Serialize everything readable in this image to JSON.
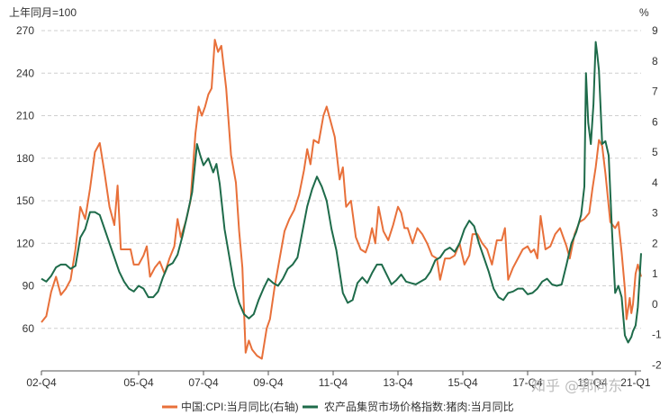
{
  "chart_data": {
    "type": "line",
    "y_left_unit": "上年同月=100",
    "y_right_unit": "%",
    "y_left_ticks": [
      60,
      90,
      120,
      150,
      180,
      210,
      240,
      270
    ],
    "y_right_ticks": [
      -2,
      -1,
      0,
      1,
      2,
      3,
      4,
      5,
      6,
      7,
      8,
      9
    ],
    "ylim_left": [
      30,
      270
    ],
    "ylim_right": [
      -2.2,
      9
    ],
    "xlim": [
      2002.75,
      2021.25
    ],
    "x_ticks": [
      {
        "label": "02-Q4",
        "x": 2002.75
      },
      {
        "label": "05-Q4",
        "x": 2005.75
      },
      {
        "label": "07-Q4",
        "x": 2007.75
      },
      {
        "label": "09-Q4",
        "x": 2009.75
      },
      {
        "label": "11-Q4",
        "x": 2011.75
      },
      {
        "label": "13-Q4",
        "x": 2013.75
      },
      {
        "label": "15-Q4",
        "x": 2015.75
      },
      {
        "label": "17-Q4",
        "x": 2017.75
      },
      {
        "label": "19-Q4",
        "x": 2019.75
      },
      {
        "label": "21-Q1",
        "x": 2021.08
      }
    ],
    "grid": "horizontal-dashed",
    "legend_position": "bottom",
    "series": [
      {
        "name": "中国:CPI:当月同比(右轴)",
        "axis": "right",
        "color": "#e8703a",
        "points": [
          [
            2002.75,
            -0.6
          ],
          [
            2002.9,
            -0.4
          ],
          [
            2003.05,
            0.4
          ],
          [
            2003.2,
            0.9
          ],
          [
            2003.35,
            0.3
          ],
          [
            2003.5,
            0.5
          ],
          [
            2003.65,
            0.8
          ],
          [
            2003.8,
            1.8
          ],
          [
            2003.95,
            3.2
          ],
          [
            2004.1,
            2.8
          ],
          [
            2004.25,
            3.8
          ],
          [
            2004.4,
            5.0
          ],
          [
            2004.55,
            5.3
          ],
          [
            2004.7,
            4.3
          ],
          [
            2004.85,
            3.2
          ],
          [
            2005.0,
            2.6
          ],
          [
            2005.1,
            3.9
          ],
          [
            2005.2,
            1.8
          ],
          [
            2005.35,
            1.8
          ],
          [
            2005.5,
            1.8
          ],
          [
            2005.6,
            1.3
          ],
          [
            2005.75,
            1.3
          ],
          [
            2005.9,
            1.6
          ],
          [
            2006.0,
            1.9
          ],
          [
            2006.1,
            0.9
          ],
          [
            2006.25,
            1.2
          ],
          [
            2006.4,
            1.4
          ],
          [
            2006.55,
            1.0
          ],
          [
            2006.7,
            1.5
          ],
          [
            2006.85,
            1.9
          ],
          [
            2006.95,
            2.8
          ],
          [
            2007.05,
            2.2
          ],
          [
            2007.2,
            2.7
          ],
          [
            2007.35,
            3.4
          ],
          [
            2007.5,
            5.6
          ],
          [
            2007.6,
            6.5
          ],
          [
            2007.7,
            6.2
          ],
          [
            2007.8,
            6.5
          ],
          [
            2007.9,
            6.9
          ],
          [
            2008.0,
            7.1
          ],
          [
            2008.1,
            8.7
          ],
          [
            2008.2,
            8.3
          ],
          [
            2008.3,
            8.5
          ],
          [
            2008.45,
            7.1
          ],
          [
            2008.6,
            4.9
          ],
          [
            2008.75,
            4.0
          ],
          [
            2008.85,
            2.4
          ],
          [
            2008.95,
            1.2
          ],
          [
            2009.05,
            -1.6
          ],
          [
            2009.15,
            -1.2
          ],
          [
            2009.25,
            -1.5
          ],
          [
            2009.4,
            -1.7
          ],
          [
            2009.55,
            -1.8
          ],
          [
            2009.7,
            -0.8
          ],
          [
            2009.8,
            -0.5
          ],
          [
            2009.95,
            0.6
          ],
          [
            2010.1,
            1.5
          ],
          [
            2010.25,
            2.4
          ],
          [
            2010.4,
            2.8
          ],
          [
            2010.55,
            3.1
          ],
          [
            2010.7,
            3.6
          ],
          [
            2010.85,
            4.4
          ],
          [
            2010.95,
            5.1
          ],
          [
            2011.05,
            4.6
          ],
          [
            2011.15,
            5.4
          ],
          [
            2011.3,
            5.3
          ],
          [
            2011.45,
            6.2
          ],
          [
            2011.55,
            6.5
          ],
          [
            2011.65,
            6.1
          ],
          [
            2011.8,
            5.5
          ],
          [
            2011.95,
            4.1
          ],
          [
            2012.05,
            4.5
          ],
          [
            2012.15,
            3.2
          ],
          [
            2012.3,
            3.4
          ],
          [
            2012.45,
            2.2
          ],
          [
            2012.6,
            1.8
          ],
          [
            2012.75,
            1.7
          ],
          [
            2012.85,
            2.0
          ],
          [
            2012.95,
            2.5
          ],
          [
            2013.05,
            2.0
          ],
          [
            2013.15,
            3.2
          ],
          [
            2013.3,
            2.4
          ],
          [
            2013.45,
            2.1
          ],
          [
            2013.6,
            2.6
          ],
          [
            2013.75,
            3.2
          ],
          [
            2013.85,
            3.0
          ],
          [
            2013.95,
            2.5
          ],
          [
            2014.05,
            2.5
          ],
          [
            2014.2,
            2.0
          ],
          [
            2014.35,
            2.5
          ],
          [
            2014.5,
            2.3
          ],
          [
            2014.65,
            2.0
          ],
          [
            2014.8,
            1.6
          ],
          [
            2014.95,
            1.5
          ],
          [
            2015.05,
            0.8
          ],
          [
            2015.2,
            1.5
          ],
          [
            2015.35,
            1.5
          ],
          [
            2015.5,
            1.6
          ],
          [
            2015.65,
            2.0
          ],
          [
            2015.8,
            1.3
          ],
          [
            2015.95,
            1.6
          ],
          [
            2016.05,
            2.3
          ],
          [
            2016.2,
            2.3
          ],
          [
            2016.35,
            2.0
          ],
          [
            2016.5,
            1.8
          ],
          [
            2016.65,
            1.3
          ],
          [
            2016.8,
            2.1
          ],
          [
            2016.95,
            2.1
          ],
          [
            2017.05,
            2.5
          ],
          [
            2017.15,
            0.8
          ],
          [
            2017.3,
            1.2
          ],
          [
            2017.45,
            1.5
          ],
          [
            2017.6,
            1.8
          ],
          [
            2017.75,
            1.9
          ],
          [
            2017.85,
            1.7
          ],
          [
            2017.95,
            1.8
          ],
          [
            2018.05,
            1.5
          ],
          [
            2018.15,
            2.9
          ],
          [
            2018.3,
            1.8
          ],
          [
            2018.45,
            1.9
          ],
          [
            2018.6,
            2.3
          ],
          [
            2018.75,
            2.5
          ],
          [
            2018.85,
            2.2
          ],
          [
            2018.95,
            1.9
          ],
          [
            2019.05,
            1.5
          ],
          [
            2019.2,
            2.3
          ],
          [
            2019.35,
            2.7
          ],
          [
            2019.5,
            2.8
          ],
          [
            2019.65,
            3.0
          ],
          [
            2019.75,
            3.8
          ],
          [
            2019.85,
            4.5
          ],
          [
            2019.95,
            5.4
          ],
          [
            2020.05,
            5.2
          ],
          [
            2020.15,
            4.3
          ],
          [
            2020.3,
            2.7
          ],
          [
            2020.45,
            2.5
          ],
          [
            2020.55,
            2.7
          ],
          [
            2020.65,
            1.7
          ],
          [
            2020.75,
            0.5
          ],
          [
            2020.8,
            -0.5
          ],
          [
            2020.9,
            0.2
          ],
          [
            2020.95,
            -0.3
          ],
          [
            2021.0,
            0.0
          ],
          [
            2021.08,
            1.0
          ],
          [
            2021.15,
            1.3
          ],
          [
            2021.25,
            0.9
          ]
        ]
      },
      {
        "name": "农产品集贸市场价格指数:猪肉:当月同比",
        "axis": "left",
        "color": "#1e6b4a",
        "points": [
          [
            2002.75,
            95
          ],
          [
            2002.9,
            93
          ],
          [
            2003.05,
            97
          ],
          [
            2003.2,
            103
          ],
          [
            2003.35,
            105
          ],
          [
            2003.5,
            105
          ],
          [
            2003.65,
            102
          ],
          [
            2003.8,
            104
          ],
          [
            2003.95,
            124
          ],
          [
            2004.1,
            130
          ],
          [
            2004.25,
            142
          ],
          [
            2004.4,
            142
          ],
          [
            2004.55,
            140
          ],
          [
            2004.7,
            130
          ],
          [
            2004.85,
            120
          ],
          [
            2005.0,
            110
          ],
          [
            2005.15,
            100
          ],
          [
            2005.3,
            93
          ],
          [
            2005.45,
            88
          ],
          [
            2005.6,
            86
          ],
          [
            2005.75,
            90
          ],
          [
            2005.9,
            88
          ],
          [
            2006.05,
            82
          ],
          [
            2006.2,
            82
          ],
          [
            2006.35,
            86
          ],
          [
            2006.5,
            96
          ],
          [
            2006.65,
            104
          ],
          [
            2006.8,
            106
          ],
          [
            2006.95,
            112
          ],
          [
            2007.1,
            125
          ],
          [
            2007.25,
            140
          ],
          [
            2007.4,
            156
          ],
          [
            2007.55,
            190
          ],
          [
            2007.65,
            182
          ],
          [
            2007.75,
            175
          ],
          [
            2007.9,
            180
          ],
          [
            2008.05,
            170
          ],
          [
            2008.15,
            176
          ],
          [
            2008.25,
            162
          ],
          [
            2008.4,
            130
          ],
          [
            2008.55,
            110
          ],
          [
            2008.7,
            90
          ],
          [
            2008.85,
            78
          ],
          [
            2009.0,
            70
          ],
          [
            2009.15,
            67
          ],
          [
            2009.3,
            70
          ],
          [
            2009.45,
            80
          ],
          [
            2009.6,
            88
          ],
          [
            2009.75,
            95
          ],
          [
            2009.9,
            92
          ],
          [
            2010.05,
            90
          ],
          [
            2010.2,
            95
          ],
          [
            2010.35,
            102
          ],
          [
            2010.5,
            105
          ],
          [
            2010.65,
            110
          ],
          [
            2010.8,
            128
          ],
          [
            2010.95,
            146
          ],
          [
            2011.1,
            158
          ],
          [
            2011.25,
            167
          ],
          [
            2011.4,
            160
          ],
          [
            2011.55,
            150
          ],
          [
            2011.7,
            130
          ],
          [
            2011.85,
            115
          ],
          [
            2011.95,
            100
          ],
          [
            2012.05,
            85
          ],
          [
            2012.2,
            78
          ],
          [
            2012.35,
            80
          ],
          [
            2012.5,
            92
          ],
          [
            2012.65,
            96
          ],
          [
            2012.8,
            92
          ],
          [
            2012.95,
            99
          ],
          [
            2013.1,
            105
          ],
          [
            2013.25,
            105
          ],
          [
            2013.4,
            98
          ],
          [
            2013.55,
            91
          ],
          [
            2013.7,
            94
          ],
          [
            2013.85,
            98
          ],
          [
            2014.0,
            93
          ],
          [
            2014.15,
            92
          ],
          [
            2014.3,
            91
          ],
          [
            2014.45,
            93
          ],
          [
            2014.6,
            95
          ],
          [
            2014.75,
            100
          ],
          [
            2014.9,
            108
          ],
          [
            2015.05,
            110
          ],
          [
            2015.2,
            115
          ],
          [
            2015.35,
            117
          ],
          [
            2015.5,
            114
          ],
          [
            2015.65,
            120
          ],
          [
            2015.8,
            130
          ],
          [
            2015.95,
            136
          ],
          [
            2016.1,
            132
          ],
          [
            2016.25,
            120
          ],
          [
            2016.4,
            110
          ],
          [
            2016.55,
            100
          ],
          [
            2016.7,
            88
          ],
          [
            2016.85,
            82
          ],
          [
            2017.0,
            80
          ],
          [
            2017.15,
            85
          ],
          [
            2017.3,
            86
          ],
          [
            2017.45,
            88
          ],
          [
            2017.6,
            88
          ],
          [
            2017.75,
            84
          ],
          [
            2017.9,
            85
          ],
          [
            2018.05,
            88
          ],
          [
            2018.2,
            93
          ],
          [
            2018.35,
            95
          ],
          [
            2018.5,
            91
          ],
          [
            2018.65,
            90
          ],
          [
            2018.8,
            91
          ],
          [
            2018.95,
            105
          ],
          [
            2019.1,
            120
          ],
          [
            2019.25,
            128
          ],
          [
            2019.4,
            140
          ],
          [
            2019.5,
            160
          ],
          [
            2019.55,
            240
          ],
          [
            2019.62,
            205
          ],
          [
            2019.7,
            190
          ],
          [
            2019.78,
            218
          ],
          [
            2019.85,
            262
          ],
          [
            2019.9,
            253
          ],
          [
            2019.95,
            242
          ],
          [
            2020.05,
            190
          ],
          [
            2020.15,
            192
          ],
          [
            2020.25,
            182
          ],
          [
            2020.35,
            130
          ],
          [
            2020.45,
            85
          ],
          [
            2020.55,
            90
          ],
          [
            2020.65,
            82
          ],
          [
            2020.75,
            55
          ],
          [
            2020.85,
            50
          ],
          [
            2020.95,
            54
          ],
          [
            2021.0,
            58
          ],
          [
            2021.08,
            62
          ],
          [
            2021.15,
            75
          ],
          [
            2021.25,
            113
          ]
        ]
      }
    ]
  },
  "watermark": "知乎 @郭同东"
}
